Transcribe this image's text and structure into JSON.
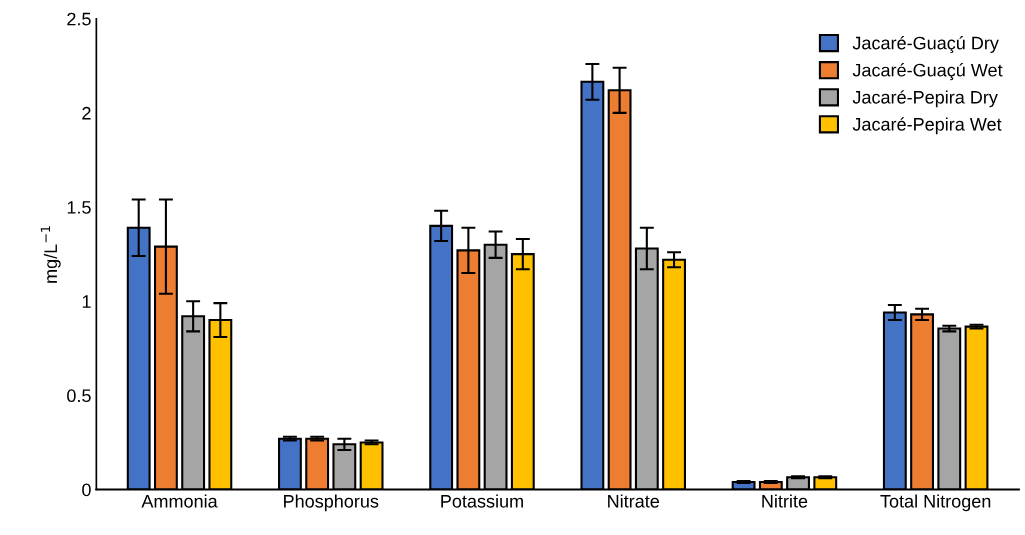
{
  "chart_data": {
    "type": "bar",
    "ylabel": "mg/L$^{−1}$",
    "categories": [
      "Ammonia",
      "Phosphorus",
      "Potassium",
      "Nitrate",
      "Nitrite",
      "Total Nitrogen"
    ],
    "series": [
      {
        "name": "Jacaré-Guaçú Dry",
        "color": "#4472c4",
        "values": [
          1.39,
          0.27,
          1.4,
          2.165,
          0.04,
          0.94
        ],
        "errors": [
          0.15,
          0.01,
          0.08,
          0.095,
          0.005,
          0.04
        ]
      },
      {
        "name": "Jacaré-Guaçú Wet",
        "color": "#ed7d31",
        "values": [
          1.29,
          0.27,
          1.27,
          2.12,
          0.04,
          0.93
        ],
        "errors": [
          0.25,
          0.01,
          0.12,
          0.12,
          0.005,
          0.03
        ]
      },
      {
        "name": "Jacaré-Pepira Dry",
        "color": "#a5a5a5",
        "values": [
          0.92,
          0.24,
          1.3,
          1.28,
          0.065,
          0.855
        ],
        "errors": [
          0.08,
          0.03,
          0.07,
          0.11,
          0.005,
          0.015
        ]
      },
      {
        "name": "Jacaré-Pepira Wet",
        "color": "#ffc000",
        "values": [
          0.9,
          0.25,
          1.25,
          1.22,
          0.065,
          0.865
        ],
        "errors": [
          0.09,
          0.01,
          0.08,
          0.04,
          0.005,
          0.01
        ]
      }
    ],
    "ylim": [
      0,
      2.5
    ],
    "yticks": [
      0,
      0.5,
      1,
      1.5,
      2,
      2.5
    ],
    "grid": false,
    "legend": "top right"
  }
}
